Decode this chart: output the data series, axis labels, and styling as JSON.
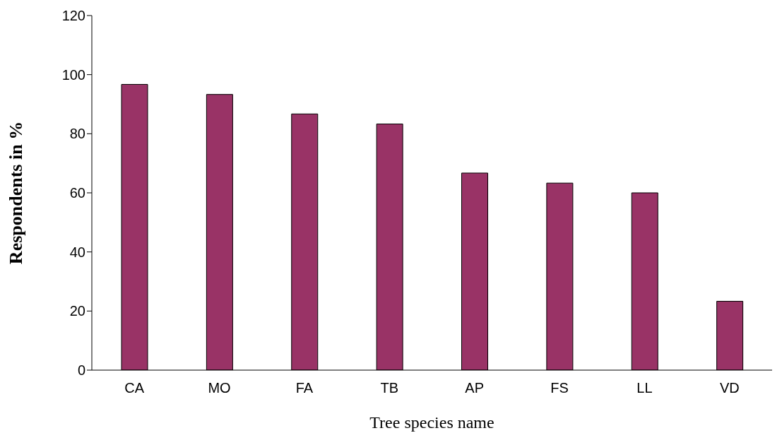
{
  "chart_data": {
    "type": "bar",
    "xlabel": "Tree species name",
    "ylabel": "Respondents in %",
    "categories": [
      "CA",
      "MO",
      "FA",
      "TB",
      "AP",
      "FS",
      "LL",
      "VD"
    ],
    "values": [
      96.7,
      93.3,
      86.7,
      83.3,
      66.7,
      63.3,
      60,
      23.3
    ],
    "color": "#993366",
    "ylim": [
      0,
      120
    ],
    "yticks": [
      0,
      20,
      40,
      60,
      80,
      100,
      120
    ],
    "grid": false,
    "legend": false
  }
}
